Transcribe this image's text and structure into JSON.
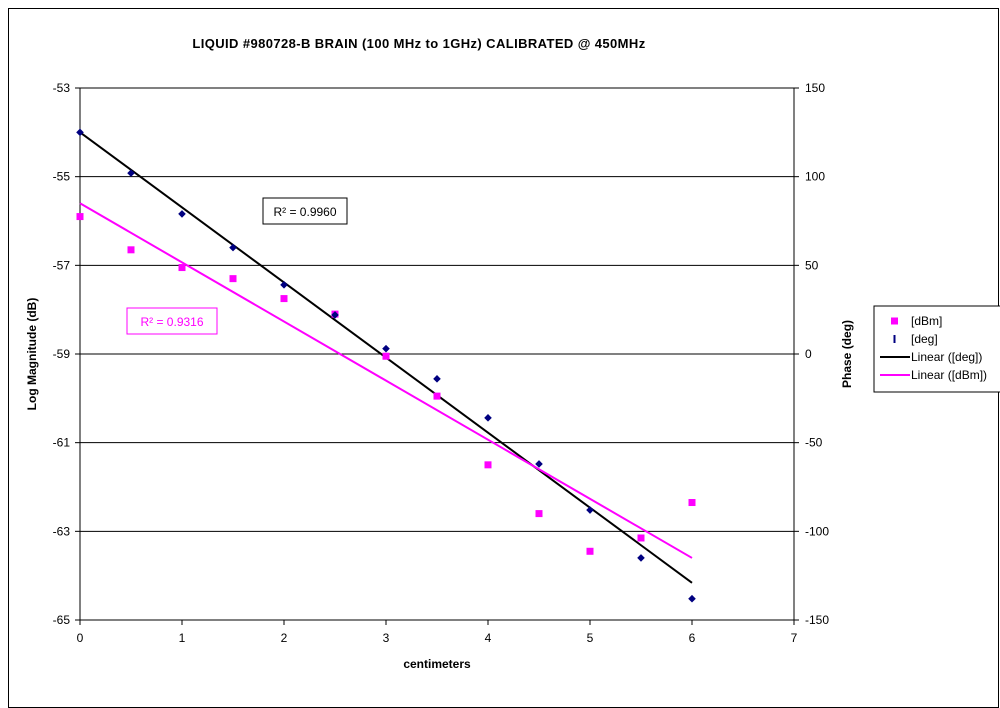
{
  "chart_data": {
    "type": "scatter",
    "title": "LIQUID #980728-B BRAIN (100 MHz to 1GHz) CALIBRATED @ 450MHz",
    "xlabel": "centimeters",
    "ylabel_left": "Log Magnitude (dB)",
    "ylabel_right": "Phase (deg)",
    "xlim": [
      0,
      7
    ],
    "ylim_left": [
      -65,
      -53
    ],
    "ylim_right": [
      -150,
      150
    ],
    "x_ticks": [
      "0",
      "1",
      "2",
      "3",
      "4",
      "5",
      "6",
      "7"
    ],
    "y_left_ticks": [
      "-53",
      "-55",
      "-57",
      "-59",
      "-61",
      "-63",
      "-65"
    ],
    "y_right_ticks": [
      "150",
      "100",
      "50",
      "0",
      "-50",
      "-100",
      "-150"
    ],
    "grid": "horizontal",
    "legend_position": "right",
    "series": [
      {
        "name": "[dBm]",
        "axis": "left",
        "marker": "square",
        "color": "#ff00ff",
        "x": [
          0,
          0.5,
          1,
          1.5,
          2,
          2.5,
          3,
          3.5,
          4,
          4.5,
          5,
          5.5,
          6
        ],
        "y": [
          -55.9,
          -56.65,
          -57.05,
          -57.3,
          -57.75,
          -58.1,
          -59.05,
          -59.95,
          -61.5,
          -62.6,
          -63.45,
          -63.15,
          -62.35
        ]
      },
      {
        "name": "[deg]",
        "axis": "right",
        "marker": "diamond",
        "color": "#000080",
        "x": [
          0,
          0.5,
          1,
          1.5,
          2,
          2.5,
          3,
          3.5,
          4,
          4.5,
          5,
          5.5,
          6
        ],
        "y": [
          125,
          102,
          79,
          60,
          39,
          22,
          3,
          -14,
          -36,
          -62,
          -88,
          -115,
          -138
        ]
      }
    ],
    "trendlines": [
      {
        "name": "Linear ([deg])",
        "axis": "right",
        "color": "#000000",
        "x": [
          0,
          6
        ],
        "y": [
          125,
          -129
        ],
        "r2_label": "R² = 0.9960"
      },
      {
        "name": "Linear ([dBm])",
        "axis": "left",
        "color": "#ff00ff",
        "x": [
          0,
          6
        ],
        "y": [
          -55.6,
          -63.6
        ],
        "r2_label": "R² = 0.9316"
      }
    ]
  }
}
